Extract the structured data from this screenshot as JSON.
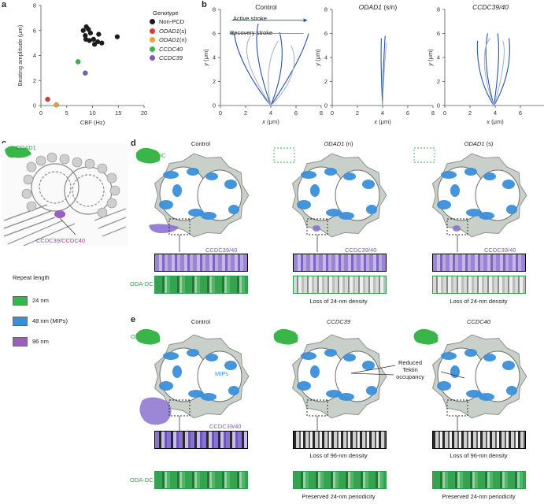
{
  "panels": {
    "a": "a",
    "b": "b",
    "c": "c",
    "d": "d",
    "e": "e"
  },
  "panel_a": {
    "legend_title": "Genotype",
    "legend": [
      {
        "label": "Non-PCD",
        "color": "#1a1a1a",
        "italic": false
      },
      {
        "label": "ODAD1",
        "suffix": " (s)",
        "color": "#e03a2f",
        "italic": true
      },
      {
        "label": "ODAD1",
        "suffix": " (n)",
        "color": "#f0a030",
        "italic": true
      },
      {
        "label": "CCDC40",
        "suffix": "",
        "color": "#3ab54a",
        "italic": true
      },
      {
        "label": "CCDC39",
        "suffix": "",
        "color": "#7a5bbf",
        "italic": true
      }
    ]
  },
  "chart_data": [
    {
      "type": "scatter",
      "xlabel": "CBF (Hz)",
      "ylabel": "Beating amplitude (μm)",
      "xlim": [
        0,
        20
      ],
      "ylim": [
        0,
        8
      ],
      "xticks": [
        0,
        5,
        10,
        15,
        20
      ],
      "yticks": [
        0,
        2,
        4,
        6,
        8
      ],
      "series": [
        {
          "name": "Non-PCD",
          "color": "#1a1a1a",
          "points": [
            [
              8.2,
              6.0
            ],
            [
              8.8,
              6.3
            ],
            [
              9.2,
              6.1
            ],
            [
              9.6,
              5.8
            ],
            [
              8.6,
              5.6
            ],
            [
              11.2,
              5.7
            ],
            [
              14.8,
              5.5
            ],
            [
              8.7,
              5.3
            ],
            [
              9.4,
              5.2
            ],
            [
              10.2,
              5.3
            ],
            [
              11.0,
              5.1
            ],
            [
              11.8,
              5.0
            ],
            [
              10.4,
              4.9
            ]
          ]
        },
        {
          "name": "ODAD1 (s)",
          "color": "#e03a2f",
          "points": [
            [
              1.3,
              0.5
            ]
          ]
        },
        {
          "name": "ODAD1 (n)",
          "color": "#f0a030",
          "points": [
            [
              3.0,
              0.05
            ]
          ]
        },
        {
          "name": "CCDC40",
          "color": "#3ab54a",
          "points": [
            [
              7.2,
              3.5
            ]
          ]
        },
        {
          "name": "CCDC39",
          "color": "#7a5bbf",
          "points": [
            [
              8.6,
              2.6
            ]
          ]
        }
      ]
    },
    {
      "type": "line",
      "title": "Control",
      "xlabel": "x (μm)",
      "ylabel": "y (μm)",
      "xlim": [
        0,
        8
      ],
      "ylim": [
        0,
        8
      ],
      "xticks": [
        0,
        2,
        4,
        6,
        8
      ],
      "yticks": [
        0,
        2,
        4,
        6,
        8
      ]
    },
    {
      "type": "line",
      "title": "ODAD1 (s/n)",
      "xlabel": "x (μm)",
      "ylabel": "y (μm)",
      "xlim": [
        0,
        8
      ],
      "ylim": [
        0,
        8
      ],
      "xticks": [
        0,
        2,
        4,
        6,
        8
      ],
      "yticks": [
        0,
        2,
        4,
        6,
        8
      ]
    },
    {
      "type": "line",
      "title": "CCDC39/40",
      "xlabel": "x (μm)",
      "ylabel": "y (μm)",
      "xlim": [
        0,
        8
      ],
      "ylim": [
        0,
        8
      ],
      "xticks": [
        0,
        2,
        4,
        6,
        8
      ],
      "yticks": [
        0,
        2,
        4,
        6,
        8
      ]
    }
  ],
  "panel_b": {
    "active_stroke": "Active stroke",
    "recovery_stroke": "Recovery stroke",
    "title_control": "Control",
    "title_odad1": "ODAD1",
    "title_odad1_suffix": " (s/n)",
    "title_ccdc": "CCDC39/40"
  },
  "panel_c": {
    "odad1": "ODAD1",
    "ccdc39": "CCDC39/",
    "ccdc40": "CCDC40",
    "legend_title": "Repeat length",
    "legend": [
      {
        "label": "24 nm",
        "color": "#3ab54a"
      },
      {
        "label": "48 nm (MIPs)",
        "color": "#3a8fd9"
      },
      {
        "label": "96 nm",
        "color": "#9a5fc0"
      }
    ]
  },
  "panel_d": {
    "col_control": "Control",
    "col_n": "ODAD1",
    "col_n_suffix": " (n)",
    "col_s": "ODAD1",
    "col_s_suffix": " (s)",
    "oda_dc": "ODA-DC",
    "ccdc": "CCDC39/40",
    "loss24": "Loss of 24-nm density"
  },
  "panel_e": {
    "col_control": "Control",
    "col_39": "CCDC39",
    "col_40": "CCDC40",
    "oda_dc": "ODA-DC",
    "mips": "MIPs",
    "ccdc": "CCDC39/40",
    "reduced": "Reduced",
    "tektin": "Tektin",
    "occupancy": "occupancy",
    "loss96": "Loss of 96-nm density",
    "preserved": "Preserved 24-nm periodicity"
  }
}
